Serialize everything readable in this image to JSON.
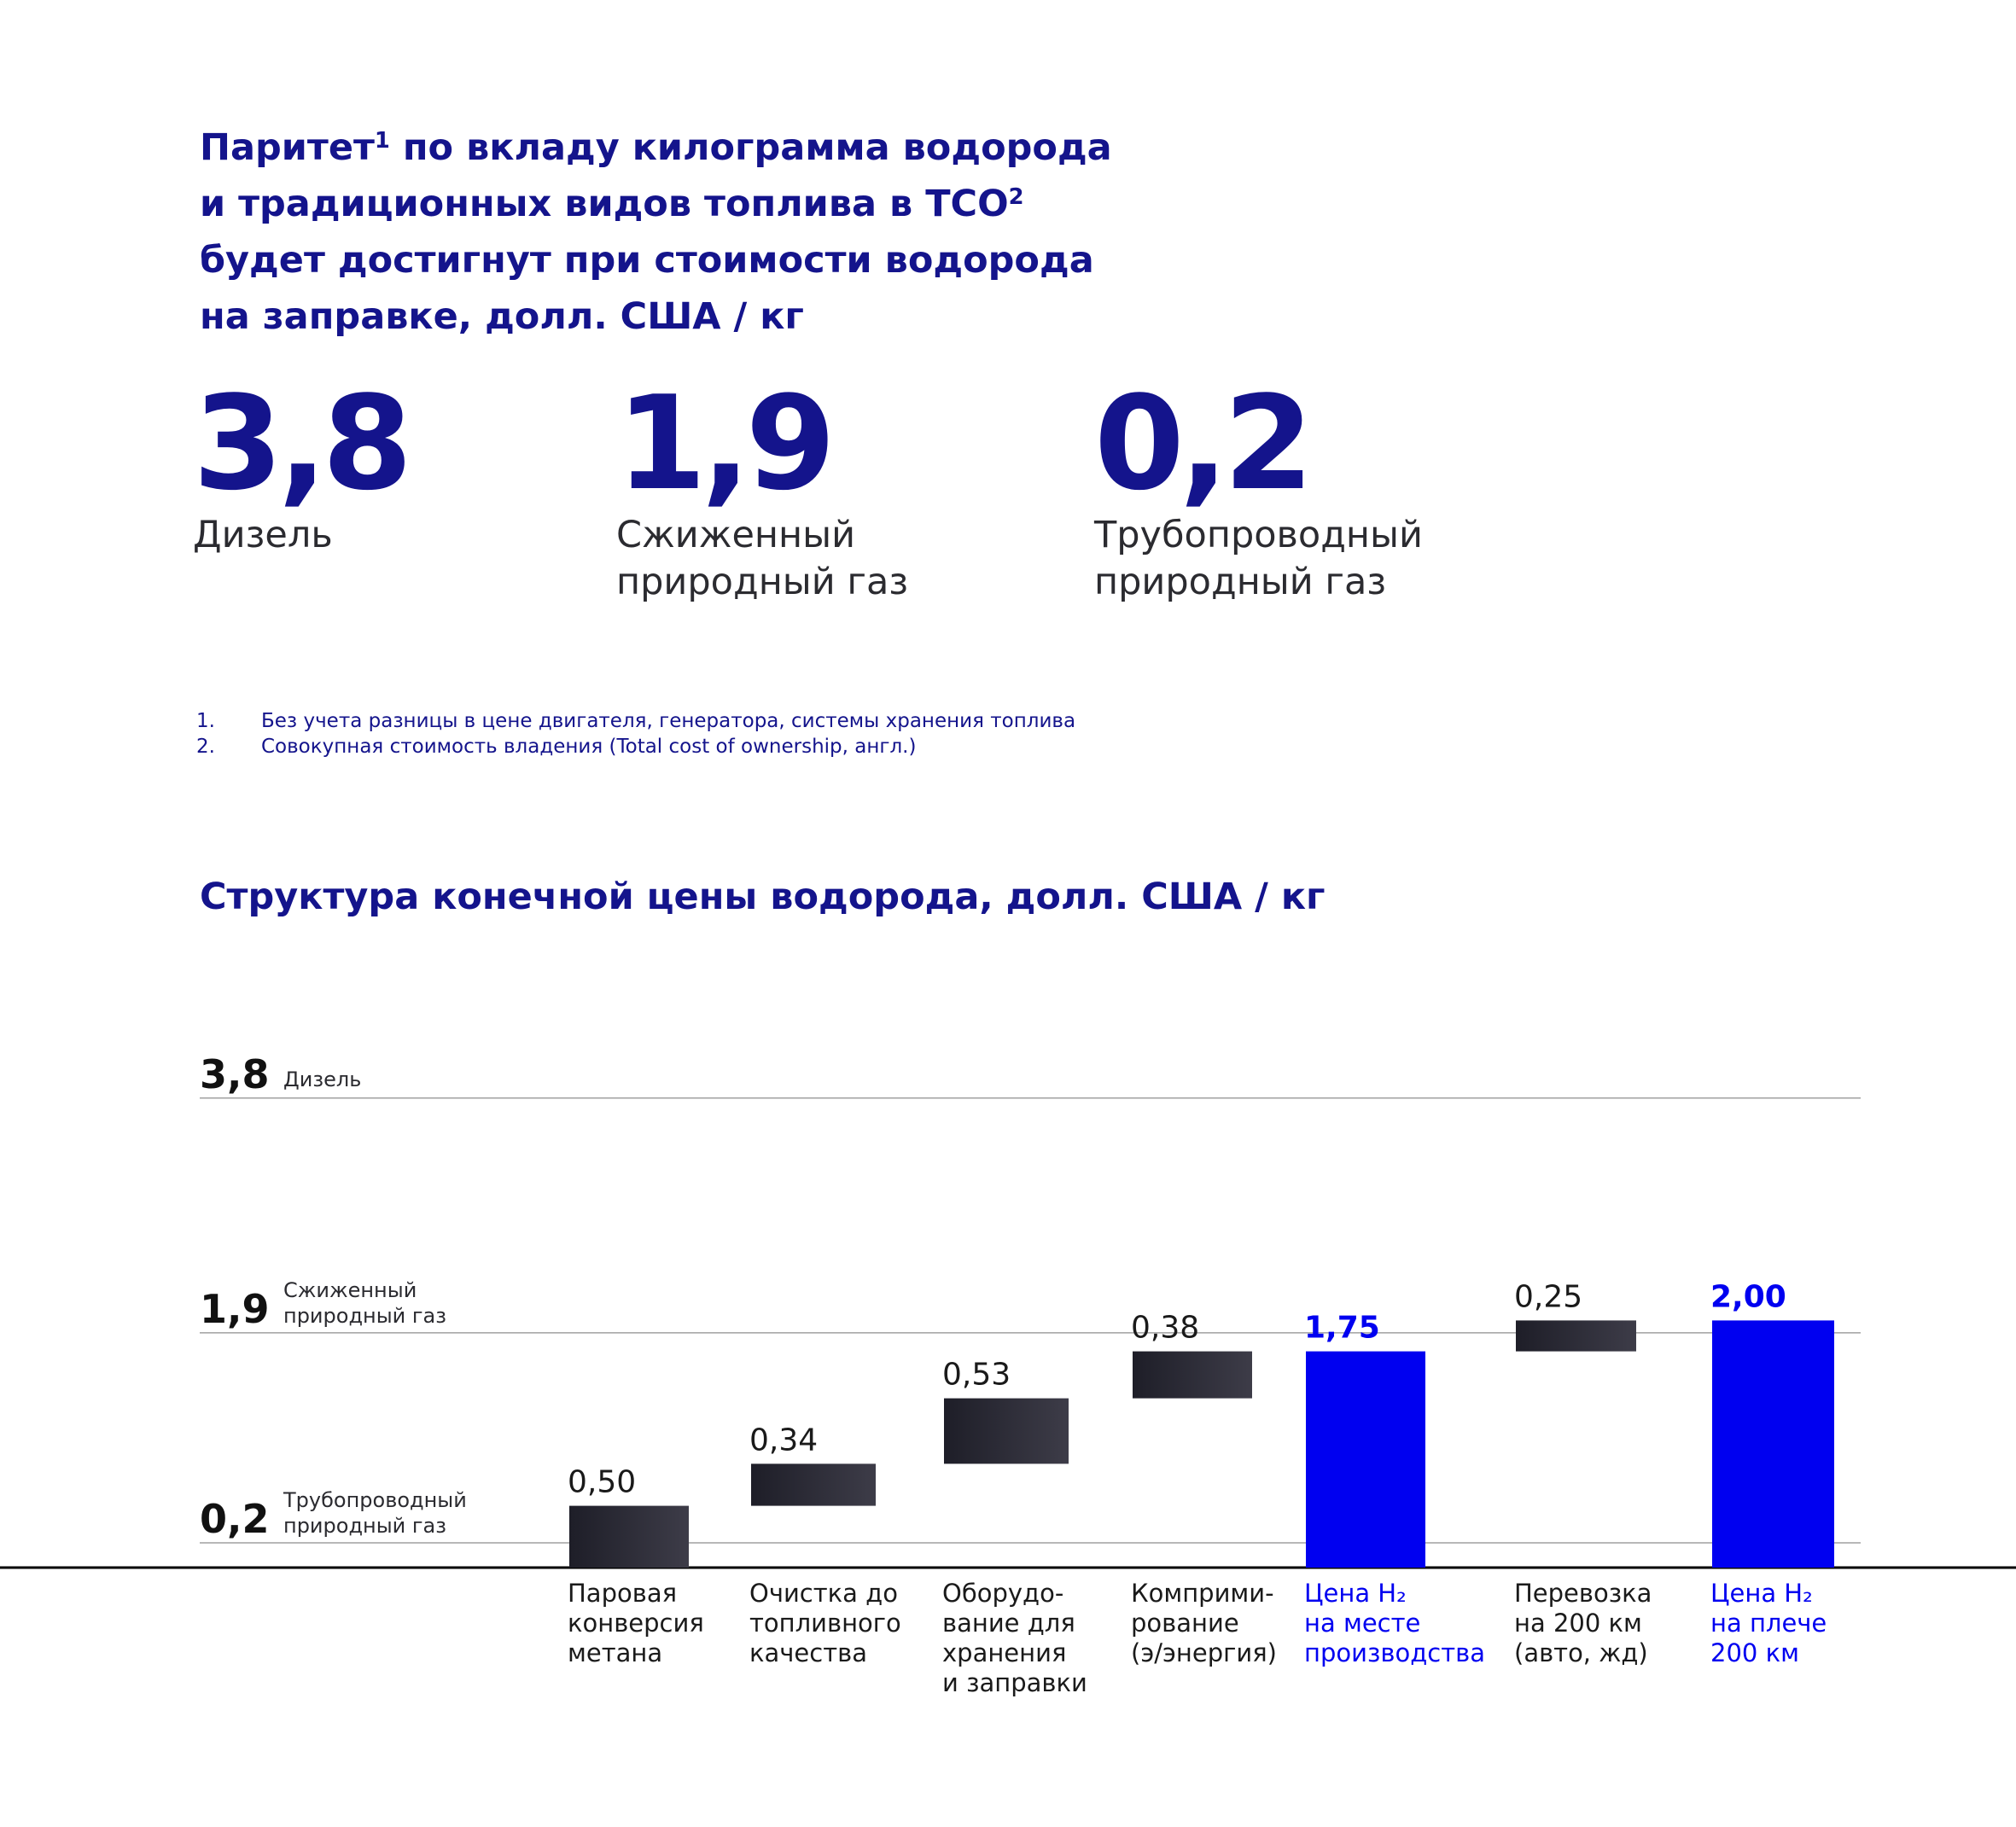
{
  "header": {
    "title_before_sup": "Паритет",
    "title_sup1": "1",
    "title_line1_rest": " по вкладу килограмма водорода",
    "title_line2": "и традиционных видов топлива в TCO",
    "title_sup2": "2",
    "title_line3": "будет достигнут при стоимости водорода",
    "title_line4": "на заправке, долл. США / кг"
  },
  "kpis": [
    {
      "value": "3,8",
      "label_line1": "Дизель",
      "label_line2": ""
    },
    {
      "value": "1,9",
      "label_line1": "Сжиженный",
      "label_line2": "природный газ"
    },
    {
      "value": "0,2",
      "label_line1": "Трубопроводный",
      "label_line2": "природный газ"
    }
  ],
  "footnotes": [
    {
      "num": "1.",
      "text": "Без учета разницы в цене двигателя, генератора, системы хранения топлива"
    },
    {
      "num": "2.",
      "text": "Совокупная стоимость владения (Total cost of ownership, англ.)"
    }
  ],
  "section": {
    "title": "Структура конечной цены водорода, долл. США / кг"
  },
  "colors": {
    "navy": "#14148c",
    "blue": "#0000f0",
    "dark_bar": "#2b2a36",
    "grid": "#a0a0a0",
    "axis": "#000000"
  },
  "chart_data": {
    "type": "waterfall",
    "title": "Структура конечной цены водорода, долл. США / кг",
    "ylim": [
      0,
      3.8
    ],
    "reference_lines": [
      {
        "value": 3.8,
        "value_label": "3,8",
        "label_lines": [
          "Дизель"
        ]
      },
      {
        "value": 1.9,
        "value_label": "1,9",
        "label_lines": [
          "Сжиженный",
          "природный газ"
        ]
      },
      {
        "value": 0.2,
        "value_label": "0,2",
        "label_lines": [
          "Трубопроводный",
          "природный газ"
        ]
      }
    ],
    "steps": [
      {
        "label_lines": [
          "Паровая",
          "конверсия",
          "метана"
        ],
        "value": 0.5,
        "value_label": "0,50",
        "start": 0.0,
        "kind": "increment"
      },
      {
        "label_lines": [
          "Очистка до",
          "топливного",
          "качества"
        ],
        "value": 0.34,
        "value_label": "0,34",
        "start": 0.5,
        "kind": "increment"
      },
      {
        "label_lines": [
          "Оборудо-",
          "вание для",
          "хранения",
          "и заправки"
        ],
        "value": 0.53,
        "value_label": "0,53",
        "start": 0.84,
        "kind": "increment"
      },
      {
        "label_lines": [
          "Комприми-",
          "рование",
          "(э/энергия)"
        ],
        "value": 0.38,
        "value_label": "0,38",
        "start": 1.37,
        "kind": "increment"
      },
      {
        "label_lines": [
          "Цена H₂",
          "на месте",
          "производства"
        ],
        "value": 1.75,
        "value_label": "1,75",
        "start": 0.0,
        "kind": "total"
      },
      {
        "label_lines": [
          "Перевозка",
          "на 200 км",
          "(авто, жд)"
        ],
        "value": 0.25,
        "value_label": "0,25",
        "start": 1.75,
        "kind": "increment"
      },
      {
        "label_lines": [
          "Цена H₂",
          "на плече",
          "200 км"
        ],
        "value": 2.0,
        "value_label": "2,00",
        "start": 0.0,
        "kind": "total"
      }
    ]
  }
}
